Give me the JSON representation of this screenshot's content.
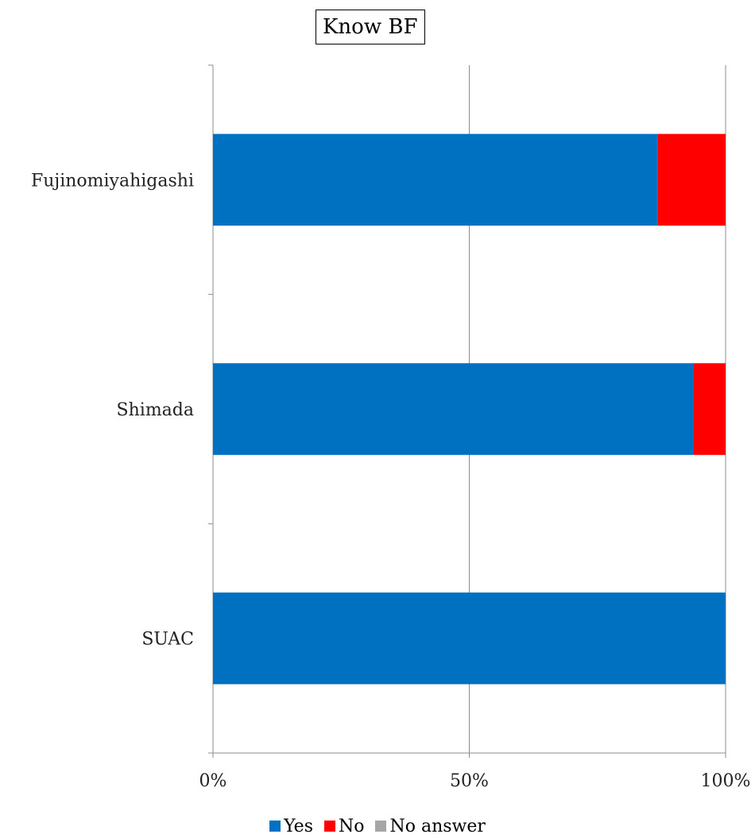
{
  "chart_data": {
    "type": "bar",
    "orientation": "horizontal",
    "stacked": true,
    "title": "Know BF",
    "categories": [
      "Fujinomiyahigashi",
      "Shimada",
      "SUAC"
    ],
    "series": [
      {
        "name": "Yes",
        "color": "#0070C0",
        "values": [
          86.7,
          93.8,
          100
        ]
      },
      {
        "name": "No",
        "color": "#FF0000",
        "values": [
          13.3,
          6.2,
          0
        ]
      },
      {
        "name": "No answer",
        "color": "#A6A6A6",
        "values": [
          0,
          0,
          0
        ]
      }
    ],
    "xlim": [
      0,
      100
    ],
    "xticks": [
      "0%",
      "50%",
      "100%"
    ],
    "grid": true,
    "legend_position": "bottom"
  }
}
